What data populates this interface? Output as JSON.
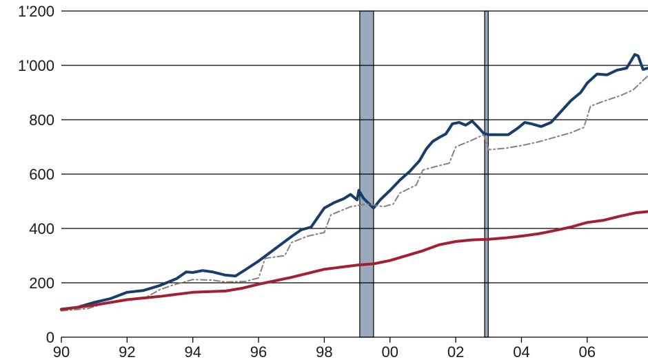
{
  "chart_data": {
    "type": "line",
    "title": "",
    "xlabel": "",
    "ylabel": "",
    "xlim": [
      1990,
      2007.85
    ],
    "ylim": [
      0,
      1200
    ],
    "grid": "horizontal",
    "x_ticks": [
      {
        "value": 1990,
        "label": "90"
      },
      {
        "value": 1992,
        "label": "92"
      },
      {
        "value": 1994,
        "label": "94"
      },
      {
        "value": 1996,
        "label": "96"
      },
      {
        "value": 1998,
        "label": "98"
      },
      {
        "value": 2000,
        "label": "00"
      },
      {
        "value": 2002,
        "label": "02"
      },
      {
        "value": 2004,
        "label": "04"
      },
      {
        "value": 2006,
        "label": "06"
      }
    ],
    "y_ticks": [
      {
        "value": 0,
        "label": "0"
      },
      {
        "value": 200,
        "label": "200"
      },
      {
        "value": 400,
        "label": "400"
      },
      {
        "value": 600,
        "label": "600"
      },
      {
        "value": 800,
        "label": "800"
      },
      {
        "value": 1000,
        "label": "1'000"
      },
      {
        "value": 1200,
        "label": "1'200"
      }
    ],
    "shaded_periods": [
      {
        "start": 1999.08,
        "end": 1999.5,
        "color": "#9aaabc"
      },
      {
        "start": 2002.88,
        "end": 2002.99,
        "color": "#9aaabc"
      }
    ],
    "series": [
      {
        "color": "#163d6b",
        "style": "solid",
        "points": [
          [
            1990.0,
            103
          ],
          [
            1990.5,
            110
          ],
          [
            1991.0,
            128
          ],
          [
            1991.5,
            142
          ],
          [
            1992.0,
            165
          ],
          [
            1992.5,
            172
          ],
          [
            1993.0,
            190
          ],
          [
            1993.5,
            215
          ],
          [
            1993.8,
            240
          ],
          [
            1994.0,
            238
          ],
          [
            1994.3,
            245
          ],
          [
            1994.6,
            240
          ],
          [
            1995.0,
            228
          ],
          [
            1995.3,
            225
          ],
          [
            1995.6,
            248
          ],
          [
            1996.0,
            280
          ],
          [
            1996.5,
            325
          ],
          [
            1997.0,
            370
          ],
          [
            1997.3,
            395
          ],
          [
            1997.6,
            405
          ],
          [
            1998.0,
            475
          ],
          [
            1998.3,
            495
          ],
          [
            1998.6,
            510
          ],
          [
            1998.8,
            525
          ],
          [
            1999.0,
            505
          ],
          [
            1999.05,
            540
          ],
          [
            1999.2,
            510
          ],
          [
            1999.5,
            475
          ],
          [
            1999.7,
            505
          ],
          [
            2000.0,
            540
          ],
          [
            2000.3,
            578
          ],
          [
            2000.6,
            610
          ],
          [
            2000.9,
            650
          ],
          [
            2001.1,
            692
          ],
          [
            2001.3,
            720
          ],
          [
            2001.5,
            735
          ],
          [
            2001.7,
            748
          ],
          [
            2001.9,
            785
          ],
          [
            2002.1,
            790
          ],
          [
            2002.3,
            780
          ],
          [
            2002.5,
            795
          ],
          [
            2002.7,
            770
          ],
          [
            2002.85,
            750
          ],
          [
            2003.0,
            745
          ],
          [
            2003.3,
            745
          ],
          [
            2003.6,
            745
          ],
          [
            2003.9,
            770
          ],
          [
            2004.1,
            790
          ],
          [
            2004.3,
            785
          ],
          [
            2004.6,
            775
          ],
          [
            2004.9,
            790
          ],
          [
            2005.2,
            830
          ],
          [
            2005.5,
            870
          ],
          [
            2005.8,
            900
          ],
          [
            2006.0,
            935
          ],
          [
            2006.3,
            968
          ],
          [
            2006.6,
            965
          ],
          [
            2006.9,
            982
          ],
          [
            2007.2,
            990
          ],
          [
            2007.45,
            1040
          ],
          [
            2007.55,
            1035
          ],
          [
            2007.7,
            985
          ],
          [
            2007.85,
            990
          ]
        ]
      },
      {
        "color": "#8a7e76",
        "style": "dash-dot",
        "points": [
          [
            1990.0,
            97
          ],
          [
            1990.8,
            105
          ],
          [
            1991.2,
            120
          ],
          [
            1992.0,
            140
          ],
          [
            1992.6,
            148
          ],
          [
            1993.0,
            175
          ],
          [
            1993.4,
            192
          ],
          [
            1994.0,
            212
          ],
          [
            1994.6,
            210
          ],
          [
            1995.0,
            203
          ],
          [
            1995.6,
            205
          ],
          [
            1996.0,
            218
          ],
          [
            1996.2,
            290
          ],
          [
            1996.8,
            300
          ],
          [
            1997.0,
            348
          ],
          [
            1997.5,
            372
          ],
          [
            1998.0,
            385
          ],
          [
            1998.2,
            450
          ],
          [
            1998.8,
            480
          ],
          [
            1999.3,
            490
          ],
          [
            1999.8,
            480
          ],
          [
            2000.1,
            490
          ],
          [
            2000.3,
            530
          ],
          [
            2000.8,
            560
          ],
          [
            2001.0,
            615
          ],
          [
            2001.4,
            628
          ],
          [
            2001.8,
            640
          ],
          [
            2002.0,
            700
          ],
          [
            2002.5,
            725
          ],
          [
            2002.85,
            745
          ],
          [
            2003.0,
            690
          ],
          [
            2003.5,
            695
          ],
          [
            2004.0,
            705
          ],
          [
            2004.5,
            718
          ],
          [
            2005.0,
            735
          ],
          [
            2005.5,
            752
          ],
          [
            2005.9,
            772
          ],
          [
            2006.1,
            850
          ],
          [
            2006.5,
            868
          ],
          [
            2007.0,
            888
          ],
          [
            2007.4,
            910
          ],
          [
            2007.85,
            962
          ]
        ]
      },
      {
        "color": "#a31f34",
        "style": "solid",
        "points": [
          [
            1990.0,
            102
          ],
          [
            1991.0,
            118
          ],
          [
            1992.0,
            138
          ],
          [
            1993.0,
            150
          ],
          [
            1994.0,
            165
          ],
          [
            1995.0,
            170
          ],
          [
            1995.5,
            180
          ],
          [
            1996.0,
            195
          ],
          [
            1997.0,
            220
          ],
          [
            1998.0,
            250
          ],
          [
            1999.0,
            265
          ],
          [
            1999.5,
            270
          ],
          [
            2000.0,
            282
          ],
          [
            2001.0,
            318
          ],
          [
            2001.5,
            340
          ],
          [
            2002.0,
            352
          ],
          [
            2002.5,
            358
          ],
          [
            2003.0,
            360
          ],
          [
            2003.5,
            365
          ],
          [
            2004.0,
            372
          ],
          [
            2004.5,
            380
          ],
          [
            2005.0,
            392
          ],
          [
            2005.5,
            405
          ],
          [
            2006.0,
            422
          ],
          [
            2006.5,
            430
          ],
          [
            2007.0,
            445
          ],
          [
            2007.5,
            458
          ],
          [
            2007.85,
            462
          ]
        ]
      }
    ]
  }
}
